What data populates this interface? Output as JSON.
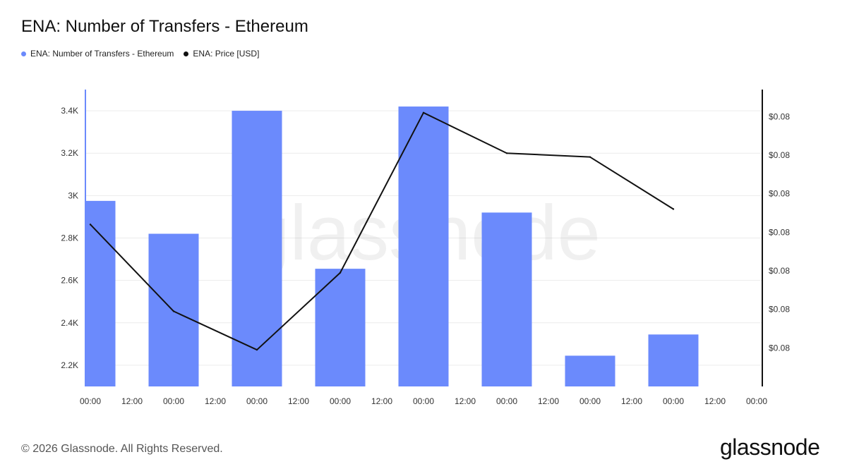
{
  "title": "ENA: Number of Transfers - Ethereum",
  "legend": [
    {
      "label": "ENA: Number of Transfers - Ethereum",
      "color": "#6b8afc"
    },
    {
      "label": "ENA: Price [USD]",
      "color": "#111111"
    }
  ],
  "watermark": "glassnode",
  "footer": "© 2026 Glassnode. All Rights Reserved.",
  "logo": "glassnode",
  "chart_data": {
    "type": "bar",
    "x_tick_labels": [
      "00:00",
      "12:00",
      "00:00",
      "12:00",
      "00:00",
      "12:00",
      "00:00",
      "12:00",
      "00:00",
      "12:00",
      "00:00",
      "12:00",
      "00:00",
      "12:00",
      "00:00",
      "12:00",
      "00:00"
    ],
    "y_left": {
      "ticks": [
        "2.2K",
        "2.4K",
        "2.6K",
        "2.8K",
        "3K",
        "3.2K",
        "3.4K"
      ],
      "tick_values": [
        2200,
        2400,
        2600,
        2800,
        3000,
        3200,
        3400
      ],
      "range": [
        2100,
        3500
      ]
    },
    "y_right": {
      "ticks": [
        "$0.08",
        "$0.08",
        "$0.08",
        "$0.08",
        "$0.08",
        "$0.08",
        "$0.08"
      ],
      "tick_values": [
        0.081,
        0.083,
        0.085,
        0.087,
        0.089,
        0.091,
        0.093
      ],
      "range": [
        0.079,
        0.0944
      ]
    },
    "grid": true,
    "legend_position": "top-left",
    "series": [
      {
        "name": "ENA: Number of Transfers - Ethereum",
        "type": "bar",
        "color": "#6b8afc",
        "x": [
          0,
          1,
          2,
          3,
          4,
          5,
          6,
          7
        ],
        "values": [
          2975,
          2820,
          3400,
          2655,
          3420,
          2920,
          2245,
          2345
        ]
      },
      {
        "name": "ENA: Price [USD]",
        "type": "line",
        "color": "#111111",
        "x": [
          0,
          1,
          2,
          3,
          4,
          5,
          6,
          7
        ],
        "values": [
          0.0874,
          0.0829,
          0.0809,
          0.0849,
          0.0932,
          0.0911,
          0.0909,
          0.0882
        ]
      }
    ]
  }
}
